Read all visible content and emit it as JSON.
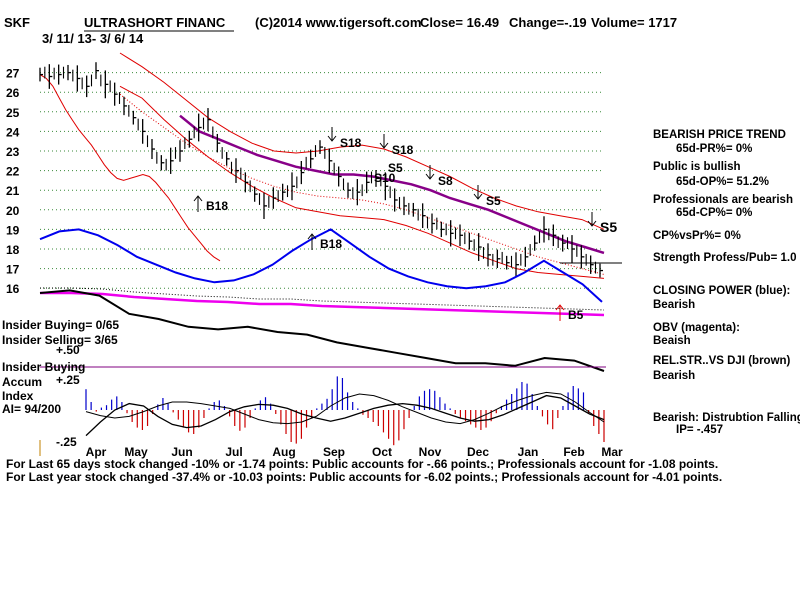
{
  "header": {
    "ticker": "SKF",
    "name": "ULTRASHORT FINANC",
    "source": "(C)2014 www.tigersoft.com",
    "close": "Close=  16.49",
    "change": "Change=-.19",
    "volume": "Volume= 1717",
    "range": "3/ 11/ 13- 3/ 6/ 14"
  },
  "panel_labels": {
    "insider_buying_count": "Insider Buying= 0/65",
    "insider_selling_count": "Insider Selling= 3/65",
    "plus50": "+.50",
    "insider_buying": "Insider Buying",
    "accum": "Accum",
    "plus25": "+.25",
    "index": "Index",
    "ai": "AI= 94/200",
    "minus25": "-.25"
  },
  "side_panel": {
    "lines": [
      "BEARISH PRICE TREND",
      "65d-PR%= 0%",
      "Public is bullish",
      "65d-OP%= 51.2%",
      "Professionals are bearish",
      "65d-CP%= 0%",
      "CP%vsPr%=  0%",
      "Strength Profess/Pub= 1.0",
      "CLOSING POWER (blue):",
      "Bearish",
      "OBV (magenta):",
      "Beaish",
      "REL.STR..VS DJI (brown)",
      "Bearish",
      "Bearish: Distrubtion Falling",
      "IP= -.457"
    ]
  },
  "footer": {
    "line1": "For Last 65 days stock changed -10% or -1.74 points:  Public accounts for -.66 points.;  Professionals account for -1.08 points.",
    "line2": "For Last year stock changed -37.4% or -10.03 points:  Public accounts for -6.02 points.;  Professionals account for -4.01 points."
  },
  "signals": [
    {
      "label": "B18",
      "arrow": "up"
    },
    {
      "label": "S18",
      "arrow": "down"
    },
    {
      "label": "S18",
      "arrow": "down"
    },
    {
      "label": "S5",
      "arrow": "none"
    },
    {
      "label": "S10",
      "arrow": "none"
    },
    {
      "label": "S8",
      "arrow": "down"
    },
    {
      "label": "B18",
      "arrow": "up"
    },
    {
      "label": "S5",
      "arrow": "down"
    },
    {
      "label": "B5",
      "arrow": "up"
    },
    {
      "label": "S5",
      "arrow": "down"
    }
  ],
  "chart_data": {
    "type": "line",
    "ylim": [
      15.5,
      27.5
    ],
    "y_ticks": [
      "27",
      "26",
      "25",
      "24",
      "23",
      "22",
      "21",
      "20",
      "19",
      "18",
      "17",
      "16"
    ],
    "x_ticks": [
      "Apr",
      "May",
      "Jun",
      "Jul",
      "Aug",
      "Sep",
      "Oct",
      "Nov",
      "Dec",
      "Jan",
      "Feb",
      "Mar"
    ],
    "grid": true,
    "price_close": [
      26.9,
      26.8,
      26.9,
      27.0,
      26.7,
      26.3,
      27.1,
      26.4,
      25.9,
      25.3,
      24.7,
      24.0,
      23.1,
      22.4,
      22.5,
      23.0,
      23.6,
      24.2,
      24.6,
      23.4,
      22.6,
      22.0,
      21.4,
      20.8,
      20.2,
      20.6,
      20.9,
      21.2,
      21.9,
      22.6,
      23.2,
      22.5,
      21.7,
      21.0,
      20.9,
      21.4,
      21.6,
      21.2,
      20.5,
      20.2,
      20.0,
      19.7,
      19.3,
      19.0,
      18.8,
      18.7,
      18.4,
      18.1,
      17.7,
      17.5,
      17.3,
      17.2,
      17.6,
      18.3,
      19.0,
      18.7,
      18.3,
      18.0,
      17.6,
      17.2,
      16.9
    ],
    "series": [
      {
        "values": [
          26.9,
          26.7,
          26.3,
          25.7,
          25.1,
          24.6,
          24.1,
          23.7,
          23.3,
          22.8,
          22.3,
          21.9,
          21.6,
          21.5,
          21.6,
          21.7,
          21.8,
          21.7,
          21.4,
          21.0,
          20.6,
          20.1,
          19.6,
          19.1,
          18.7,
          18.3,
          17.9,
          17.6,
          17.4
        ]
      },
      {
        "values": [
          24.8,
          24.0,
          23.6,
          23.2,
          22.8,
          22.5,
          22.2,
          22.0,
          21.8,
          21.8,
          21.7,
          21.5,
          21.3,
          21.0,
          20.6,
          20.3,
          20.0,
          19.6,
          19.2,
          18.8,
          18.4,
          18.1,
          17.8
        ]
      },
      {
        "values": [
          28.0,
          27.3,
          26.5,
          25.6,
          24.7,
          24.0,
          23.4,
          23.0,
          22.9,
          23.0,
          23.2,
          23.3,
          23.1,
          22.7,
          22.2,
          21.7,
          21.1,
          20.6,
          20.2,
          19.9,
          19.7,
          19.5,
          19.0
        ]
      },
      {
        "values": [
          26.3,
          25.7,
          24.6,
          23.6,
          22.7,
          21.9,
          21.2,
          20.6,
          20.1,
          19.9,
          19.7,
          19.6,
          19.5,
          19.2,
          18.8,
          18.3,
          17.8,
          17.4,
          17.0,
          16.8,
          16.7,
          16.6,
          16.5
        ]
      },
      {
        "values": [
          25.9,
          25.0,
          24.2,
          23.4,
          22.7,
          22.1,
          21.6,
          21.2,
          20.9,
          20.7,
          20.6,
          20.5,
          20.3,
          20.0,
          19.6,
          19.2,
          18.8,
          18.4,
          18.0,
          17.6,
          17.3,
          17.0,
          16.7
        ]
      },
      {
        "values": [
          18.5,
          18.9,
          19.0,
          18.7,
          18.2,
          17.6,
          17.2,
          16.8,
          16.5,
          16.3,
          16.4,
          16.7,
          17.2,
          17.9,
          18.5,
          19.0,
          18.3,
          17.6,
          17.0,
          16.6,
          16.3,
          16.1,
          16.0,
          16.1,
          16.3,
          16.8,
          17.4,
          16.8,
          16.2,
          15.3
        ]
      },
      {
        "values": [
          0.0,
          0.0,
          -0.1,
          -0.4,
          -0.6,
          -0.8,
          -0.9,
          -1.1,
          -1.1,
          -1.3,
          -1.4,
          -1.5,
          -1.6,
          -1.7,
          -1.8,
          -1.9,
          -2.0,
          -2.1,
          -2.2
        ]
      },
      {
        "values": [
          0.0,
          0.1,
          -0.1,
          -0.8,
          -1.0,
          -1.3,
          -1.4,
          -1.3,
          -1.5,
          -1.6,
          -1.9,
          -2.1,
          -2.3,
          -2.5,
          -2.7,
          -2.7,
          -2.8,
          -2.5,
          -2.6,
          -3.0
        ]
      },
      {
        "values": [
          0.26,
          0.1,
          -0.02,
          0.03,
          0.06,
          0.13,
          0.17,
          0.1,
          -0.04,
          -0.15,
          -0.22,
          -0.25,
          -0.2,
          -0.05,
          0.07,
          0.15,
          0.08,
          -0.03,
          -0.12,
          -0.22,
          -0.28,
          -0.3,
          -0.22,
          -0.1,
          0.02,
          0.1,
          0.12,
          0.05,
          -0.08,
          -0.2,
          -0.26,
          -0.22,
          -0.1,
          0.02,
          0.12,
          0.16,
          0.08,
          -0.05,
          -0.18,
          -0.3,
          -0.4,
          -0.42,
          -0.36,
          -0.22,
          -0.1,
          0.02,
          0.08,
          0.14,
          0.26,
          0.42,
          0.4,
          0.22,
          0.1,
          0.02,
          -0.06,
          -0.1,
          -0.15,
          -0.2,
          -0.28,
          -0.36,
          -0.44,
          -0.38,
          -0.24,
          -0.1,
          0.05,
          0.17,
          0.24,
          0.26,
          0.24,
          0.16,
          0.08,
          0.02,
          -0.05,
          -0.1,
          -0.14,
          -0.18,
          -0.22,
          -0.25,
          -0.22,
          -0.14,
          -0.04,
          0.05,
          0.13,
          0.2,
          0.27,
          0.35,
          0.33,
          0.2,
          0.05,
          -0.08,
          -0.18,
          -0.24,
          -0.1,
          0.05,
          0.22,
          0.3,
          0.27,
          0.22,
          -0.05,
          -0.2,
          -0.3,
          -0.4
        ]
      },
      {
        "values": [
          -0.02,
          -0.07,
          -0.1,
          -0.08,
          -0.02,
          0.05,
          0.1,
          0.1,
          0.08,
          0.05,
          0.02,
          -0.05,
          -0.12,
          -0.16,
          -0.17,
          -0.15,
          -0.08,
          0.05,
          0.15,
          0.2,
          0.18,
          0.12,
          0.04,
          -0.03,
          -0.1,
          -0.15,
          -0.17,
          -0.12,
          -0.04,
          0.05,
          0.12,
          0.18,
          0.22,
          0.2,
          0.1,
          -0.03,
          -0.15
        ]
      },
      {
        "values": [
          -0.32,
          -0.15,
          0.0,
          0.08,
          0.05,
          -0.08,
          -0.18,
          -0.22,
          -0.2,
          -0.12,
          -0.02,
          0.04,
          0.07,
          0.06,
          0.02,
          -0.05,
          -0.1,
          -0.14,
          -0.1,
          -0.04,
          0.02,
          0.06,
          0.08,
          0.06,
          0.02,
          -0.04,
          -0.1,
          -0.14,
          -0.12,
          -0.06,
          0.02,
          0.1,
          0.18,
          0.15,
          0.05,
          -0.05,
          -0.12
        ]
      }
    ]
  }
}
